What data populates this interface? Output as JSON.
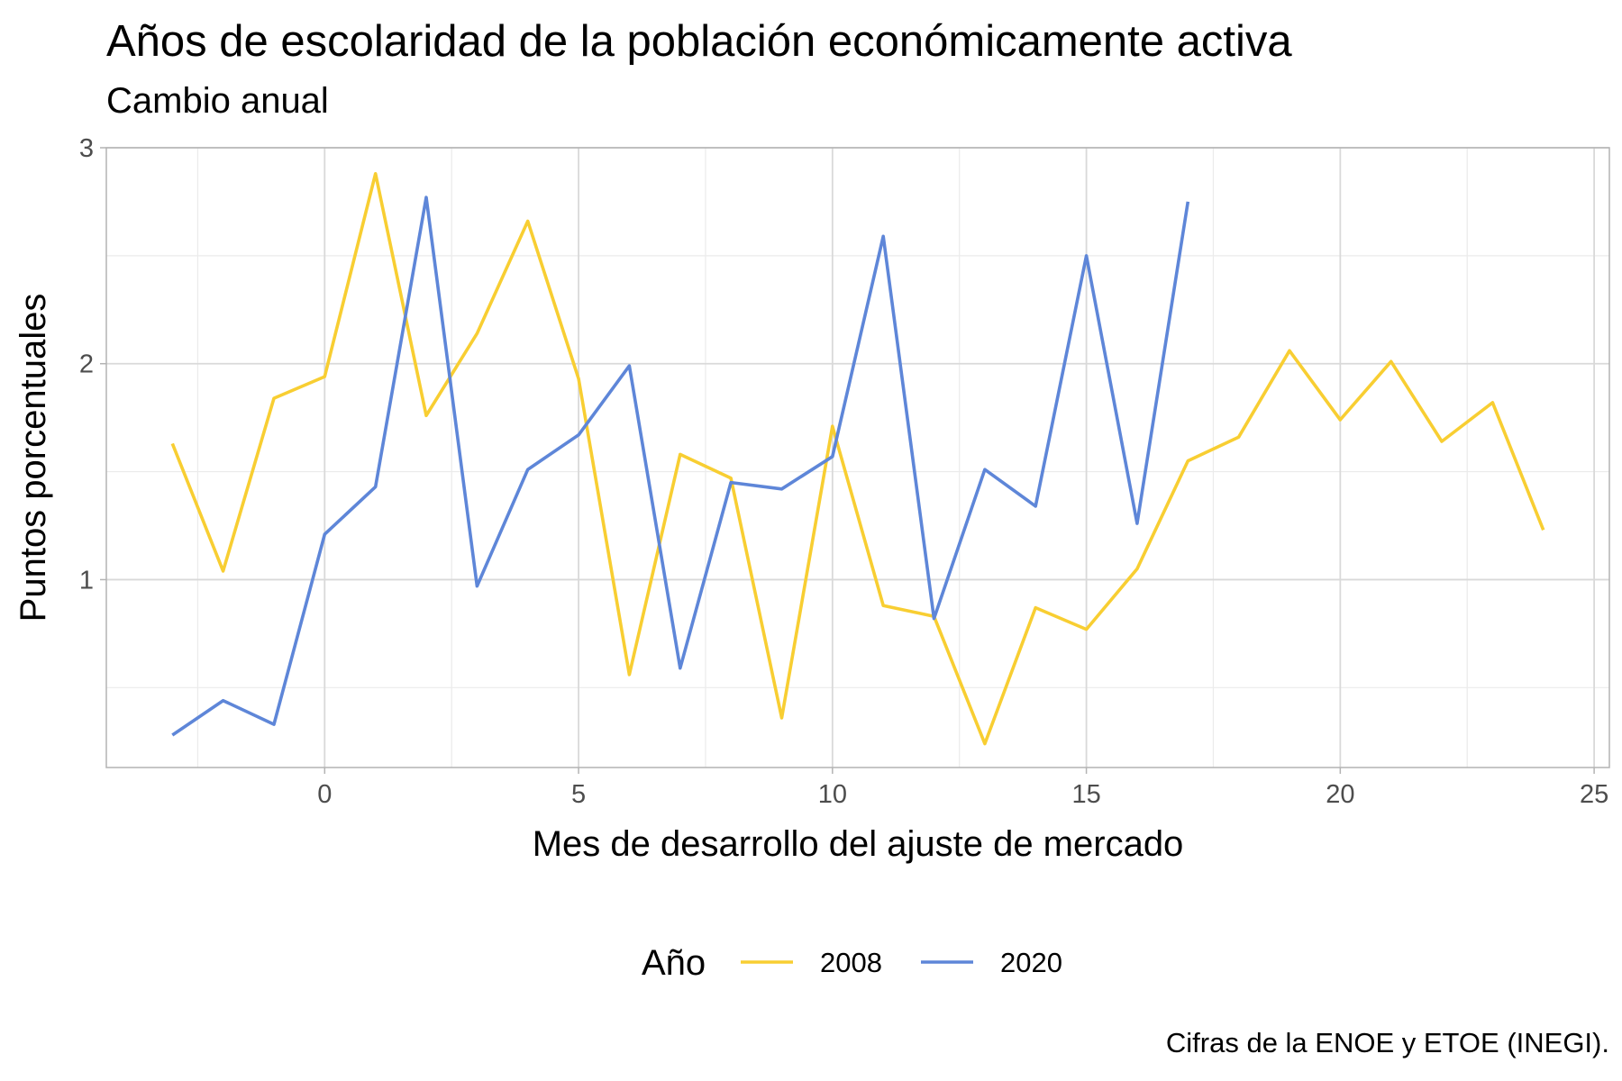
{
  "chart_data": {
    "type": "line",
    "title": "Años de escolaridad de la población económicamente activa",
    "subtitle": "Cambio anual",
    "xlabel": "Mes de desarrollo del ajuste de mercado",
    "ylabel": "Puntos porcentuales",
    "caption": "Cifras de la ENOE y ETOE (INEGI).",
    "xlim": [
      -4.3,
      25.3
    ],
    "ylim": [
      0.13,
      3.0
    ],
    "xticks": [
      "0",
      "5",
      "10",
      "15",
      "20",
      "25"
    ],
    "yticks": [
      "1",
      "2",
      "3"
    ],
    "grid": true,
    "legend_position": "bottom",
    "legend_title": "Año",
    "series": [
      {
        "name": "2008",
        "color": "#F8CE32",
        "x": [
          -3,
          -2,
          -1,
          0,
          1,
          2,
          3,
          4,
          5,
          6,
          7,
          8,
          9,
          10,
          11,
          12,
          13,
          14,
          15,
          16,
          17,
          18,
          19,
          20,
          21,
          22,
          23,
          24
        ],
        "y": [
          1.63,
          1.04,
          1.84,
          1.94,
          2.88,
          1.76,
          2.14,
          2.66,
          1.93,
          0.56,
          1.58,
          1.47,
          0.36,
          1.71,
          0.88,
          0.83,
          0.24,
          0.87,
          0.77,
          1.05,
          1.55,
          1.66,
          2.06,
          1.74,
          2.01,
          1.64,
          1.82,
          1.23
        ]
      },
      {
        "name": "2020",
        "color": "#5E86D8",
        "x": [
          -3,
          -2,
          -1,
          0,
          1,
          2,
          3,
          4,
          5,
          6,
          7,
          8,
          9,
          10,
          11,
          12,
          13,
          14,
          15,
          16,
          17
        ],
        "y": [
          0.28,
          0.44,
          0.33,
          1.21,
          1.43,
          2.77,
          0.97,
          1.51,
          1.67,
          1.99,
          0.59,
          1.45,
          1.42,
          1.57,
          2.59,
          0.82,
          1.51,
          1.34,
          2.5,
          1.26,
          2.75
        ]
      }
    ]
  }
}
